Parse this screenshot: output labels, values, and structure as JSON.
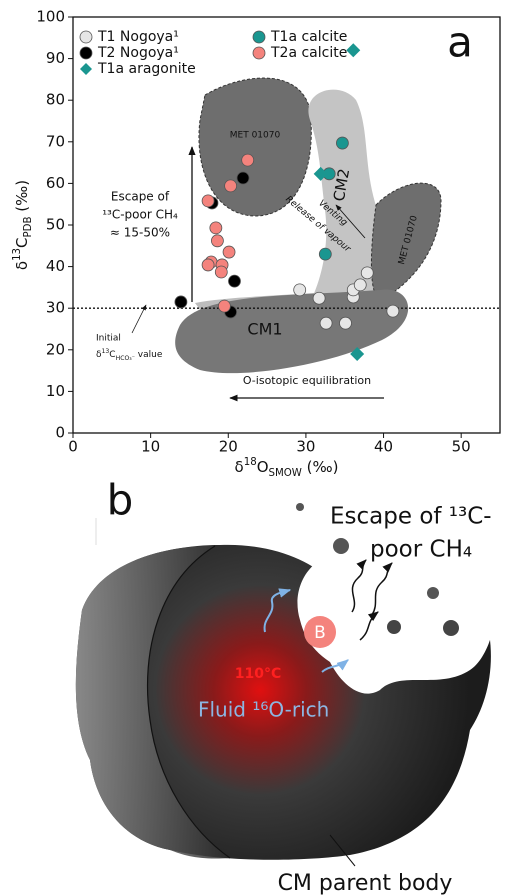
{
  "chart_data": {
    "type": "scatter",
    "panel_label": "a",
    "xlabel": [
      "δ",
      "18",
      "O",
      "SMOW",
      " (‰)"
    ],
    "ylabel": [
      "δ",
      "13",
      "C",
      "PDB",
      " (‰)"
    ],
    "xlim": [
      0,
      55
    ],
    "ylim": [
      0,
      100
    ],
    "xticks": [
      0,
      10,
      20,
      30,
      40,
      50
    ],
    "yticks": [
      0,
      10,
      20,
      30,
      40,
      50,
      60,
      70,
      80,
      90,
      100
    ],
    "hline": 30,
    "series": [
      {
        "name": "T1 Nogoya¹",
        "color": "#e6e6e6",
        "marker": "circle",
        "x": [
          29.2,
          31.7,
          32.6,
          35.1,
          36.1,
          36.1,
          37.0,
          37.9,
          41.2
        ],
        "values": [
          34.4,
          32.4,
          26.4,
          26.4,
          32.7,
          34.4,
          35.6,
          38.5,
          29.3
        ]
      },
      {
        "name": "T2 Nogoya¹",
        "color": "#000000",
        "marker": "circle",
        "x": [
          13.9,
          17.9,
          21.9,
          20.8,
          20.3
        ],
        "values": [
          31.5,
          55.3,
          61.3,
          36.5,
          29.1
        ]
      },
      {
        "name": "T1a calcite",
        "color": "#1a9690",
        "marker": "circle",
        "x": [
          34.7,
          33.0,
          32.5
        ],
        "values": [
          69.7,
          62.3,
          43.0
        ]
      },
      {
        "name": "T2a calcite",
        "color": "#f4837d",
        "marker": "circle",
        "x": [
          22.5,
          20.3,
          17.4,
          18.4,
          18.6,
          20.1,
          17.8,
          19.2,
          17.4,
          19.1,
          19.5
        ],
        "values": [
          65.6,
          59.4,
          55.8,
          49.3,
          46.2,
          43.5,
          41.1,
          40.4,
          40.4,
          38.7,
          30.5
        ]
      },
      {
        "name": "T1a aragonite",
        "color": "#1a9690",
        "marker": "diamond",
        "x": [
          36.1,
          31.9,
          36.6
        ],
        "values": [
          92.0,
          62.3,
          19.0
        ]
      }
    ],
    "annotations": [
      "MET 01070",
      "CM2",
      "Venting",
      "Release of vapour",
      "MET 01070",
      "CM1",
      "Escape of",
      "¹³C-poor CH₄",
      "≈ 15-50%",
      "Initial",
      "O-isotopic equilibration"
    ],
    "initial_value": [
      "δ",
      "13",
      "C",
      "HCO₃⁻",
      " value"
    ]
  },
  "diagram": {
    "panel_label": "b",
    "escape_1": "Escape of ¹³C-",
    "escape_2": "poor CH₄",
    "bubble": "B",
    "temperature": "110°C",
    "fluid": "Fluid ¹⁶O-rich",
    "body": "CM parent body"
  }
}
